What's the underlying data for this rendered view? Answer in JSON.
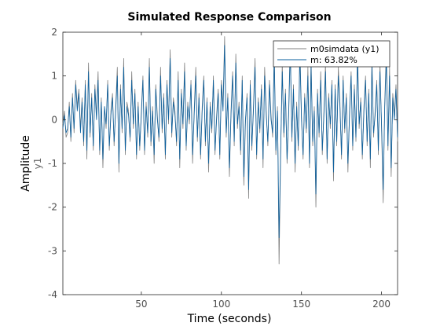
{
  "chart_data": {
    "type": "line",
    "title": "Simulated Response Comparison",
    "xlabel": "Time (seconds)",
    "ylabel": "Amplitude",
    "channel_label": "y1",
    "xlim": [
      1,
      210
    ],
    "ylim": [
      -4,
      2
    ],
    "x_ticks": [
      50,
      100,
      150,
      200
    ],
    "y_ticks": [
      2,
      1,
      0,
      -1,
      -2,
      -3,
      -4
    ],
    "grid": false,
    "legend_position": "top-right",
    "x": [
      1,
      2,
      3,
      4,
      5,
      6,
      7,
      8,
      9,
      10,
      11,
      12,
      13,
      14,
      15,
      16,
      17,
      18,
      19,
      20,
      21,
      22,
      23,
      24,
      25,
      26,
      27,
      28,
      29,
      30,
      31,
      32,
      33,
      34,
      35,
      36,
      37,
      38,
      39,
      40,
      41,
      42,
      43,
      44,
      45,
      46,
      47,
      48,
      49,
      50,
      51,
      52,
      53,
      54,
      55,
      56,
      57,
      58,
      59,
      60,
      61,
      62,
      63,
      64,
      65,
      66,
      67,
      68,
      69,
      70,
      71,
      72,
      73,
      74,
      75,
      76,
      77,
      78,
      79,
      80,
      81,
      82,
      83,
      84,
      85,
      86,
      87,
      88,
      89,
      90,
      91,
      92,
      93,
      94,
      95,
      96,
      97,
      98,
      99,
      100,
      101,
      102,
      103,
      104,
      105,
      106,
      107,
      108,
      109,
      110,
      111,
      112,
      113,
      114,
      115,
      116,
      117,
      118,
      119,
      120,
      121,
      122,
      123,
      124,
      125,
      126,
      127,
      128,
      129,
      130,
      131,
      132,
      133,
      134,
      135,
      136,
      137,
      138,
      139,
      140,
      141,
      142,
      143,
      144,
      145,
      146,
      147,
      148,
      149,
      150,
      151,
      152,
      153,
      154,
      155,
      156,
      157,
      158,
      159,
      160,
      161,
      162,
      163,
      164,
      165,
      166,
      167,
      168,
      169,
      170,
      171,
      172,
      173,
      174,
      175,
      176,
      177,
      178,
      179,
      180,
      181,
      182,
      183,
      184,
      185,
      186,
      187,
      188,
      189,
      190,
      191,
      192,
      193,
      194,
      195,
      196,
      197,
      198,
      199,
      200,
      201,
      202,
      203,
      204,
      205,
      206,
      207,
      208,
      209,
      210
    ],
    "series": [
      {
        "name": "m0simdata (y1)",
        "color": "#808080",
        "values": [
          -0.1,
          0.2,
          -0.4,
          -0.3,
          0.4,
          -0.5,
          0.6,
          -0.3,
          0.9,
          0.3,
          0.7,
          -0.2,
          0.5,
          -0.6,
          0.9,
          -0.9,
          1.3,
          -0.4,
          0.6,
          -0.7,
          0.8,
          0.1,
          1.1,
          -0.8,
          0.5,
          -1.1,
          0.3,
          -0.2,
          0.9,
          -0.7,
          0.2,
          0.6,
          -0.6,
          0.3,
          1.2,
          -1.2,
          0.8,
          -0.3,
          1.4,
          -0.8,
          0.4,
          0.2,
          -0.5,
          1.1,
          -0.2,
          0.7,
          -0.9,
          0.4,
          -0.7,
          0.2,
          1.0,
          -0.8,
          0.4,
          -0.4,
          1.4,
          -0.6,
          0.3,
          -1.0,
          0.8,
          0.1,
          -0.5,
          1.2,
          -0.3,
          0.6,
          -0.9,
          0.9,
          -0.1,
          1.6,
          -0.4,
          0.5,
          0.2,
          -0.6,
          1.1,
          -1.1,
          0.7,
          -0.2,
          1.3,
          -0.7,
          0.4,
          -0.1,
          0.9,
          -1.0,
          0.2,
          1.2,
          -0.5,
          0.6,
          -0.9,
          0.3,
          1.0,
          -0.6,
          0.5,
          -1.2,
          0.4,
          -0.3,
          1.0,
          -0.8,
          0.1,
          0.7,
          -0.9,
          0.9,
          0.3,
          1.9,
          -0.4,
          0.6,
          -1.3,
          0.2,
          1.1,
          -0.6,
          1.5,
          -0.2,
          0.4,
          -0.8,
          1.0,
          -1.5,
          -0.1,
          0.6,
          -1.8,
          0.9,
          -0.7,
          0.3,
          1.4,
          -0.9,
          0.5,
          -0.3,
          0.8,
          -1.1,
          1.2,
          0.2,
          -0.6,
          0.9,
          0.1,
          -0.4,
          1.6,
          -0.8,
          0.3,
          -3.3,
          -0.8,
          1.3,
          -0.4,
          0.7,
          -1.0,
          0.2,
          1.8,
          -0.5,
          0.8,
          -1.2,
          0.4,
          -0.7,
          1.7,
          0.1,
          -0.9,
          0.6,
          -0.3,
          1.2,
          -1.1,
          1.4,
          -0.6,
          0.3,
          -2.0,
          0.7,
          -0.4,
          1.1,
          -0.8,
          0.2,
          1.3,
          -1.0,
          0.6,
          -0.2,
          0.9,
          -1.4,
          0.8,
          -0.6,
          1.2,
          0.4,
          -0.9,
          1.0,
          -0.3,
          0.6,
          -1.2,
          0.2,
          1.1,
          -0.7,
          0.8,
          -0.5,
          1.6,
          -0.2,
          0.5,
          -0.9,
          0.3,
          1.0,
          -0.6,
          0.7,
          -1.1,
          1.4,
          -0.4,
          0.2,
          0.9,
          -0.8,
          1.3,
          -0.2,
          -1.9,
          0.4,
          1.6,
          -0.7,
          1.2,
          -1.3,
          0.6,
          0.1,
          0.8,
          -0.5
        ]
      },
      {
        "name": "m: 63.82%",
        "color": "#0a5f9e",
        "values": [
          -0.2,
          0.1,
          -0.3,
          -0.2,
          0.3,
          -0.4,
          0.5,
          -0.2,
          0.8,
          0.2,
          0.6,
          -0.3,
          0.4,
          -0.5,
          0.8,
          -0.7,
          1.1,
          -0.3,
          0.5,
          -0.6,
          0.7,
          0.0,
          0.9,
          -0.7,
          0.4,
          -0.9,
          0.3,
          -0.1,
          0.8,
          -0.6,
          0.1,
          0.5,
          -0.5,
          0.2,
          1.0,
          -1.0,
          0.7,
          -0.2,
          1.2,
          -0.7,
          0.3,
          0.1,
          -0.4,
          0.9,
          -0.1,
          0.6,
          -0.8,
          0.3,
          -0.6,
          0.1,
          0.9,
          -0.7,
          0.3,
          -0.3,
          1.2,
          -0.5,
          0.2,
          -0.8,
          0.7,
          0.0,
          -0.4,
          1.0,
          -0.2,
          0.5,
          -0.8,
          0.8,
          0.0,
          1.4,
          -0.3,
          0.4,
          0.1,
          -0.5,
          0.9,
          -0.9,
          0.6,
          -0.1,
          1.1,
          -0.6,
          0.3,
          0.0,
          0.8,
          -0.8,
          0.1,
          1.0,
          -0.4,
          0.5,
          -0.8,
          0.2,
          0.9,
          -0.5,
          0.4,
          -1.0,
          0.3,
          -0.2,
          0.9,
          -0.7,
          0.0,
          0.6,
          -0.8,
          0.8,
          0.2,
          1.7,
          -0.3,
          0.5,
          -1.1,
          0.1,
          1.0,
          -0.5,
          1.3,
          -0.1,
          0.3,
          -0.7,
          0.9,
          -1.3,
          0.0,
          0.5,
          -1.6,
          0.8,
          -0.6,
          0.2,
          1.2,
          -0.8,
          0.4,
          -0.2,
          0.7,
          -0.9,
          1.0,
          0.1,
          -0.5,
          0.8,
          0.0,
          -0.3,
          1.4,
          -0.7,
          0.2,
          -2.7,
          -0.7,
          1.1,
          -0.3,
          0.6,
          -0.9,
          0.1,
          1.6,
          -0.4,
          0.7,
          -1.0,
          0.3,
          -0.6,
          1.5,
          0.0,
          -0.8,
          0.5,
          -0.2,
          1.0,
          -1.0,
          1.2,
          -0.5,
          0.2,
          -1.7,
          0.6,
          -0.3,
          0.9,
          -0.7,
          0.1,
          1.1,
          -0.9,
          0.5,
          -0.1,
          0.8,
          -1.2,
          0.7,
          -0.5,
          1.0,
          0.3,
          -0.8,
          0.9,
          -0.2,
          0.5,
          -1.0,
          0.1,
          1.0,
          -0.6,
          0.7,
          -0.4,
          1.4,
          -0.1,
          0.4,
          -0.8,
          0.2,
          0.9,
          -0.5,
          0.6,
          -0.9,
          1.2,
          -0.3,
          0.1,
          0.8,
          -0.7,
          1.1,
          -0.1,
          -1.6,
          0.3,
          1.4,
          -0.6,
          1.0,
          -1.1,
          0.5,
          0.0,
          0.7,
          -0.4
        ]
      }
    ]
  }
}
